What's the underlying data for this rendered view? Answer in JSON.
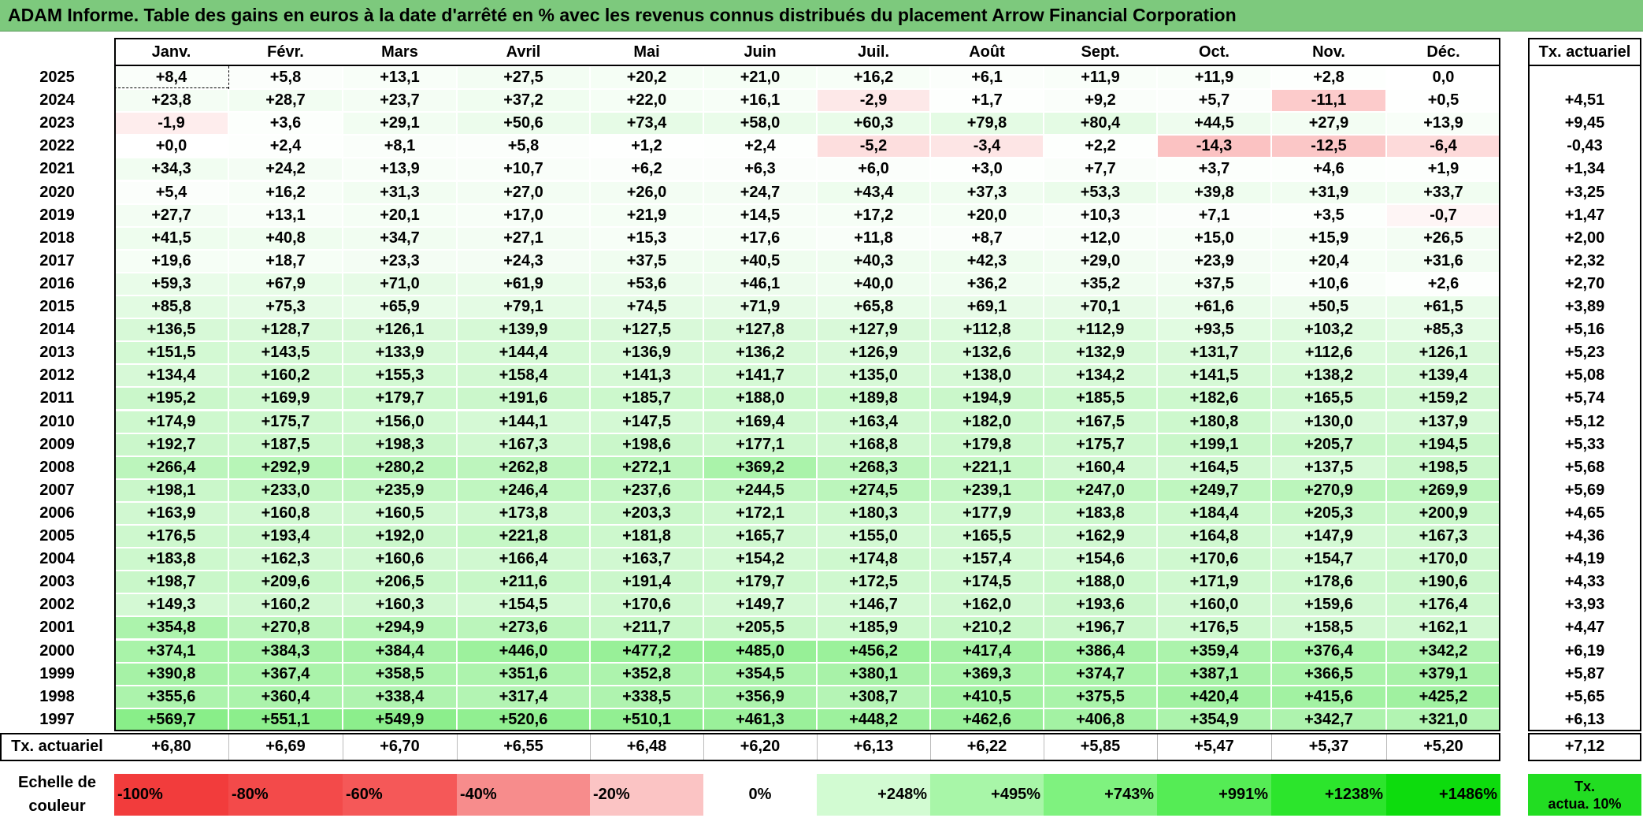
{
  "title": "ADAM Informe. Table des gains en euros à la date d'arrêté en % avec les revenus connus distribués du placement Arrow Financial Corporation",
  "chart_data": {
    "type": "table",
    "columns": [
      "Janv.",
      "Févr.",
      "Mars",
      "Avril",
      "Mai",
      "Juin",
      "Juil.",
      "Août",
      "Sept.",
      "Oct.",
      "Nov.",
      "Déc."
    ],
    "rate_header": "Tx. actuariel",
    "rows": [
      {
        "year": "2025",
        "values": [
          "+8,4",
          "+5,8",
          "+13,1",
          "+27,5",
          "+20,2",
          "+21,0",
          "+16,2",
          "+6,1",
          "+11,9",
          "+11,9",
          "+2,8",
          "0,0"
        ],
        "rate": ""
      },
      {
        "year": "2024",
        "values": [
          "+23,8",
          "+28,7",
          "+23,7",
          "+37,2",
          "+22,0",
          "+16,1",
          "-2,9",
          "+1,7",
          "+9,2",
          "+5,7",
          "-11,1",
          "+0,5"
        ],
        "rate": "+4,51"
      },
      {
        "year": "2023",
        "values": [
          "-1,9",
          "+3,6",
          "+29,1",
          "+50,6",
          "+73,4",
          "+58,0",
          "+60,3",
          "+79,8",
          "+80,4",
          "+44,5",
          "+27,9",
          "+13,9"
        ],
        "rate": "+9,45"
      },
      {
        "year": "2022",
        "values": [
          "+0,0",
          "+2,4",
          "+8,1",
          "+5,8",
          "+1,2",
          "+2,4",
          "-5,2",
          "-3,4",
          "+2,2",
          "-14,3",
          "-12,5",
          "-6,4"
        ],
        "rate": "-0,43"
      },
      {
        "year": "2021",
        "values": [
          "+34,3",
          "+24,2",
          "+13,9",
          "+10,7",
          "+6,2",
          "+6,3",
          "+6,0",
          "+3,0",
          "+7,7",
          "+3,7",
          "+4,6",
          "+1,9"
        ],
        "rate": "+1,34"
      },
      {
        "year": "2020",
        "values": [
          "+5,4",
          "+16,2",
          "+31,3",
          "+27,0",
          "+26,0",
          "+24,7",
          "+43,4",
          "+37,3",
          "+53,3",
          "+39,8",
          "+31,9",
          "+33,7"
        ],
        "rate": "+3,25"
      },
      {
        "year": "2019",
        "values": [
          "+27,7",
          "+13,1",
          "+20,1",
          "+17,0",
          "+21,9",
          "+14,5",
          "+17,2",
          "+20,0",
          "+10,3",
          "+7,1",
          "+3,5",
          "-0,7"
        ],
        "rate": "+1,47"
      },
      {
        "year": "2018",
        "values": [
          "+41,5",
          "+40,8",
          "+34,7",
          "+27,1",
          "+15,3",
          "+17,6",
          "+11,8",
          "+8,7",
          "+12,0",
          "+15,0",
          "+15,9",
          "+26,5"
        ],
        "rate": "+2,00"
      },
      {
        "year": "2017",
        "values": [
          "+19,6",
          "+18,7",
          "+23,3",
          "+24,3",
          "+37,5",
          "+40,5",
          "+40,3",
          "+42,3",
          "+29,0",
          "+23,9",
          "+20,4",
          "+31,6"
        ],
        "rate": "+2,32"
      },
      {
        "year": "2016",
        "values": [
          "+59,3",
          "+67,9",
          "+71,0",
          "+61,9",
          "+53,6",
          "+46,1",
          "+40,0",
          "+36,2",
          "+35,2",
          "+37,5",
          "+10,6",
          "+2,6"
        ],
        "rate": "+2,70"
      },
      {
        "year": "2015",
        "values": [
          "+85,8",
          "+75,3",
          "+65,9",
          "+79,1",
          "+74,5",
          "+71,9",
          "+65,8",
          "+69,1",
          "+70,1",
          "+61,6",
          "+50,5",
          "+61,5"
        ],
        "rate": "+3,89"
      },
      {
        "year": "2014",
        "values": [
          "+136,5",
          "+128,7",
          "+126,1",
          "+139,9",
          "+127,5",
          "+127,8",
          "+127,9",
          "+112,8",
          "+112,9",
          "+93,5",
          "+103,2",
          "+85,3"
        ],
        "rate": "+5,16"
      },
      {
        "year": "2013",
        "values": [
          "+151,5",
          "+143,5",
          "+133,9",
          "+144,4",
          "+136,9",
          "+136,2",
          "+126,9",
          "+132,6",
          "+132,9",
          "+131,7",
          "+112,6",
          "+126,1"
        ],
        "rate": "+5,23"
      },
      {
        "year": "2012",
        "values": [
          "+134,4",
          "+160,2",
          "+155,3",
          "+158,4",
          "+141,3",
          "+141,7",
          "+135,0",
          "+138,0",
          "+134,2",
          "+141,5",
          "+138,2",
          "+139,4"
        ],
        "rate": "+5,08"
      },
      {
        "year": "2011",
        "values": [
          "+195,2",
          "+169,9",
          "+179,7",
          "+191,6",
          "+185,7",
          "+188,0",
          "+189,8",
          "+194,9",
          "+185,5",
          "+182,6",
          "+165,5",
          "+159,2"
        ],
        "rate": "+5,74"
      },
      {
        "year": "2010",
        "values": [
          "+174,9",
          "+175,7",
          "+156,0",
          "+144,1",
          "+147,5",
          "+169,4",
          "+163,4",
          "+182,0",
          "+167,5",
          "+180,8",
          "+130,0",
          "+137,9"
        ],
        "rate": "+5,12"
      },
      {
        "year": "2009",
        "values": [
          "+192,7",
          "+187,5",
          "+198,3",
          "+167,3",
          "+198,6",
          "+177,1",
          "+168,8",
          "+179,8",
          "+175,7",
          "+199,1",
          "+205,7",
          "+194,5"
        ],
        "rate": "+5,33"
      },
      {
        "year": "2008",
        "values": [
          "+266,4",
          "+292,9",
          "+280,2",
          "+262,8",
          "+272,1",
          "+369,2",
          "+268,3",
          "+221,1",
          "+160,4",
          "+164,5",
          "+137,5",
          "+198,5"
        ],
        "rate": "+5,68"
      },
      {
        "year": "2007",
        "values": [
          "+198,1",
          "+233,0",
          "+235,9",
          "+246,4",
          "+237,6",
          "+244,5",
          "+274,5",
          "+239,1",
          "+247,0",
          "+249,7",
          "+270,9",
          "+269,9"
        ],
        "rate": "+5,69"
      },
      {
        "year": "2006",
        "values": [
          "+163,9",
          "+160,8",
          "+160,5",
          "+173,8",
          "+203,3",
          "+172,1",
          "+180,3",
          "+177,9",
          "+183,8",
          "+184,4",
          "+205,3",
          "+200,9"
        ],
        "rate": "+4,65"
      },
      {
        "year": "2005",
        "values": [
          "+176,5",
          "+193,4",
          "+192,0",
          "+221,8",
          "+181,8",
          "+165,7",
          "+155,0",
          "+165,5",
          "+162,9",
          "+164,8",
          "+147,9",
          "+167,3"
        ],
        "rate": "+4,36"
      },
      {
        "year": "2004",
        "values": [
          "+183,8",
          "+162,3",
          "+160,6",
          "+166,4",
          "+163,7",
          "+154,2",
          "+174,8",
          "+157,4",
          "+154,6",
          "+170,6",
          "+154,7",
          "+170,0"
        ],
        "rate": "+4,19"
      },
      {
        "year": "2003",
        "values": [
          "+198,7",
          "+209,6",
          "+206,5",
          "+211,6",
          "+191,4",
          "+179,7",
          "+172,5",
          "+174,5",
          "+188,0",
          "+171,9",
          "+178,6",
          "+190,6"
        ],
        "rate": "+4,33"
      },
      {
        "year": "2002",
        "values": [
          "+149,3",
          "+160,2",
          "+160,3",
          "+154,5",
          "+170,6",
          "+149,7",
          "+146,7",
          "+162,0",
          "+193,6",
          "+160,0",
          "+159,6",
          "+176,4"
        ],
        "rate": "+3,93"
      },
      {
        "year": "2001",
        "values": [
          "+354,8",
          "+270,8",
          "+294,9",
          "+273,6",
          "+211,7",
          "+205,5",
          "+185,9",
          "+210,2",
          "+196,7",
          "+176,5",
          "+158,5",
          "+162,1"
        ],
        "rate": "+4,47"
      },
      {
        "year": "2000",
        "values": [
          "+374,1",
          "+384,3",
          "+384,4",
          "+446,0",
          "+477,2",
          "+485,0",
          "+456,2",
          "+417,4",
          "+386,4",
          "+359,4",
          "+376,4",
          "+342,2"
        ],
        "rate": "+6,19"
      },
      {
        "year": "1999",
        "values": [
          "+390,8",
          "+367,4",
          "+358,5",
          "+351,6",
          "+352,8",
          "+354,5",
          "+380,1",
          "+369,3",
          "+374,7",
          "+387,1",
          "+366,5",
          "+379,1"
        ],
        "rate": "+5,87"
      },
      {
        "year": "1998",
        "values": [
          "+355,6",
          "+360,4",
          "+338,4",
          "+317,4",
          "+338,5",
          "+356,9",
          "+308,7",
          "+410,5",
          "+375,5",
          "+420,4",
          "+415,6",
          "+425,2"
        ],
        "rate": "+5,65"
      },
      {
        "year": "1997",
        "values": [
          "+569,7",
          "+551,1",
          "+549,9",
          "+520,6",
          "+510,1",
          "+461,3",
          "+448,2",
          "+462,6",
          "+406,8",
          "+354,9",
          "+342,7",
          "+321,0"
        ],
        "rate": "+6,13"
      }
    ],
    "footer": {
      "label": "Tx. actuariel",
      "values": [
        "+6,80",
        "+6,69",
        "+6,70",
        "+6,55",
        "+6,48",
        "+6,20",
        "+6,13",
        "+6,22",
        "+5,85",
        "+5,47",
        "+5,37",
        "+5,20"
      ],
      "rate": "+7,12"
    },
    "legend": {
      "label_line1": "Echelle de",
      "label_line2": "couleur",
      "steps": [
        {
          "text": "-100%",
          "color": "#f23c3c"
        },
        {
          "text": "-80%",
          "color": "#f34a4a"
        },
        {
          "text": "-60%",
          "color": "#f55858"
        },
        {
          "text": "-40%",
          "color": "#f78c8c"
        },
        {
          "text": "-20%",
          "color": "#fbc4c4"
        },
        {
          "text": "0%",
          "color": "#ffffff"
        },
        {
          "text": "+248%",
          "color": "#d2fbd2"
        },
        {
          "text": "+495%",
          "color": "#a8f6a8"
        },
        {
          "text": "+743%",
          "color": "#7ff27f"
        },
        {
          "text": "+991%",
          "color": "#55ec55"
        },
        {
          "text": "+1238%",
          "color": "#2ce52c"
        },
        {
          "text": "+1486%",
          "color": "#0ddc0d"
        }
      ],
      "rate_box_line1": "Tx.",
      "rate_box_line2": "actua. 10%",
      "rate_box_color": "#22dd22"
    }
  }
}
